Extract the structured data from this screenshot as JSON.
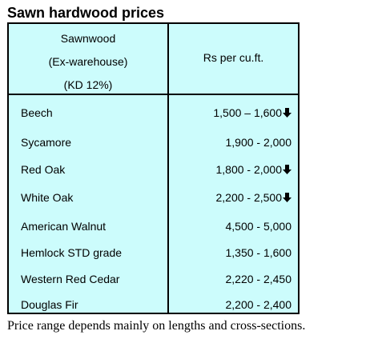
{
  "title": "Sawn hardwood prices",
  "header": {
    "left_lines": [
      "Sawnwood",
      "(Ex-warehouse)",
      "(KD 12%)"
    ],
    "right": "Rs per cu.ft."
  },
  "rows": [
    {
      "name": "Beech",
      "price": "1,500 – 1,600",
      "trend": "down"
    },
    {
      "name": "Sycamore",
      "price": "1,900 - 2,000",
      "trend": ""
    },
    {
      "name": "Red Oak",
      "price": "1,800 - 2,000",
      "trend": "down"
    },
    {
      "name": "White Oak",
      "price": "2,200 - 2,500",
      "trend": "down"
    },
    {
      "name": "American Walnut",
      "price": "4,500 - 5,000",
      "trend": ""
    },
    {
      "name": "Hemlock STD grade",
      "price": "1,350 - 1,600",
      "trend": ""
    },
    {
      "name": "Western Red Cedar",
      "price": "2,220 - 2,450",
      "trend": ""
    },
    {
      "name": "Douglas Fir",
      "price": "2,200 - 2,400",
      "trend": ""
    }
  ],
  "footnote": "Price range depends mainly on lengths and cross-sections.",
  "colors": {
    "table_background": "#ccfcfc",
    "border": "#000000"
  },
  "icons": {
    "trend_down": "down-arrow-icon"
  }
}
